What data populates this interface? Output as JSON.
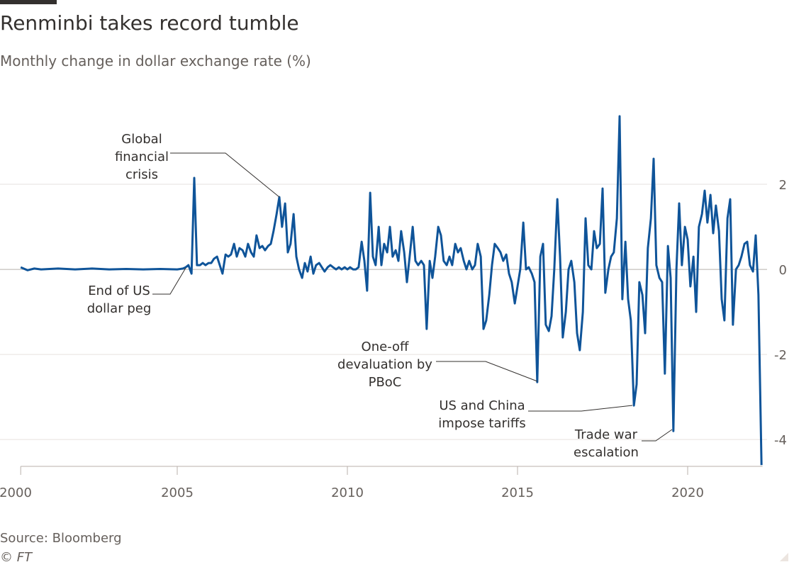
{
  "chart_data": {
    "type": "line",
    "title": "Renminbi takes record tumble",
    "subtitle": "Monthly change in dollar exchange rate (%)",
    "source": "Source: Bloomberg",
    "credit": "© FT",
    "xlim": [
      2000,
      2022.2
    ],
    "xticks": [
      2000,
      2005,
      2010,
      2015,
      2020
    ],
    "ylim": [
      -4.63,
      3.7
    ],
    "yticks": [
      -4,
      -2,
      0,
      2
    ],
    "grid": true,
    "x": [
      2000.4,
      2000.6,
      2000.8,
      2001,
      2001.5,
      2002,
      2002.5,
      2003,
      2003.5,
      2004,
      2004.5,
      2005,
      2005.17,
      2005.25,
      2005.33,
      2005.42,
      2005.5,
      2005.58,
      2005.67,
      2005.75,
      2005.83,
      2005.92,
      2006,
      2006.08,
      2006.17,
      2006.25,
      2006.33,
      2006.42,
      2006.5,
      2006.58,
      2006.67,
      2006.75,
      2006.83,
      2006.92,
      2007,
      2007.08,
      2007.17,
      2007.25,
      2007.33,
      2007.42,
      2007.5,
      2007.58,
      2007.67,
      2007.75,
      2007.83,
      2007.92,
      2008,
      2008.08,
      2008.17,
      2008.25,
      2008.33,
      2008.42,
      2008.5,
      2008.58,
      2008.67,
      2008.75,
      2008.83,
      2008.92,
      2009,
      2009.08,
      2009.17,
      2009.25,
      2009.33,
      2009.42,
      2009.5,
      2009.58,
      2009.67,
      2009.75,
      2009.83,
      2009.92,
      2010,
      2010.08,
      2010.17,
      2010.25,
      2010.33,
      2010.42,
      2010.5,
      2010.58,
      2010.67,
      2010.75,
      2010.83,
      2010.92,
      2011,
      2011.08,
      2011.17,
      2011.25,
      2011.33,
      2011.42,
      2011.5,
      2011.58,
      2011.67,
      2011.75,
      2011.83,
      2011.92,
      2012,
      2012.08,
      2012.17,
      2012.25,
      2012.33,
      2012.42,
      2012.5,
      2012.58,
      2012.67,
      2012.75,
      2012.83,
      2012.92,
      2013,
      2013.08,
      2013.17,
      2013.25,
      2013.33,
      2013.42,
      2013.5,
      2013.58,
      2013.67,
      2013.75,
      2013.83,
      2013.92,
      2014,
      2014.08,
      2014.17,
      2014.25,
      2014.33,
      2014.42,
      2014.5,
      2014.58,
      2014.67,
      2014.75,
      2014.83,
      2014.92,
      2015,
      2015.08,
      2015.17,
      2015.25,
      2015.33,
      2015.42,
      2015.5,
      2015.58,
      2015.67,
      2015.75,
      2015.83,
      2015.92,
      2016,
      2016.08,
      2016.17,
      2016.25,
      2016.33,
      2016.42,
      2016.5,
      2016.58,
      2016.67,
      2016.75,
      2016.83,
      2016.92,
      2017,
      2017.08,
      2017.17,
      2017.25,
      2017.33,
      2017.42,
      2017.5,
      2017.58,
      2017.67,
      2017.75,
      2017.83,
      2017.92,
      2018,
      2018.08,
      2018.17,
      2018.25,
      2018.33,
      2018.42,
      2018.5,
      2018.58,
      2018.67,
      2018.75,
      2018.83,
      2018.92,
      2019,
      2019.08,
      2019.17,
      2019.25,
      2019.33,
      2019.42,
      2019.5,
      2019.58,
      2019.67,
      2019.75,
      2019.83,
      2019.92,
      2020,
      2020.08,
      2020.17,
      2020.25,
      2020.33,
      2020.42,
      2020.5,
      2020.58,
      2020.67,
      2020.75,
      2020.83,
      2020.92,
      2021,
      2021.08,
      2021.17,
      2021.25,
      2021.33,
      2021.42,
      2021.5,
      2021.58,
      2021.67,
      2021.75,
      2021.83,
      2021.92,
      2022,
      2022.08,
      2022.17
    ],
    "series": [
      {
        "name": "Renminbi",
        "color": "#0f5499",
        "values": [
          0.05,
          -0.02,
          0.02,
          0,
          0.02,
          0,
          0.02,
          0,
          0.01,
          0,
          0.01,
          0,
          0.02,
          0.05,
          0.1,
          -0.1,
          2.15,
          0.1,
          0.1,
          0.15,
          0.1,
          0.15,
          0.15,
          0.25,
          0.3,
          0.1,
          -0.1,
          0.35,
          0.3,
          0.35,
          0.6,
          0.3,
          0.5,
          0.45,
          0.3,
          0.6,
          0.4,
          0.3,
          0.8,
          0.5,
          0.55,
          0.45,
          0.55,
          0.6,
          0.9,
          1.3,
          1.7,
          1.0,
          1.55,
          0.4,
          0.6,
          1.3,
          0.3,
          0.0,
          -0.2,
          0.15,
          -0.05,
          0.3,
          -0.1,
          0.1,
          0.15,
          0.05,
          -0.05,
          0.05,
          0.1,
          0.05,
          0.0,
          0.05,
          0.0,
          0.05,
          0,
          0.05,
          0,
          0,
          0.05,
          0.65,
          0.2,
          -0.5,
          1.8,
          0.3,
          0.1,
          1.0,
          0.1,
          0.6,
          0.4,
          1.0,
          0.3,
          0.45,
          0.2,
          0.9,
          0.4,
          -0.3,
          0.3,
          1.0,
          0.2,
          0.1,
          0.2,
          0.1,
          -1.4,
          0.2,
          -0.2,
          0.3,
          1.0,
          0.8,
          0.2,
          0.1,
          0.3,
          0.1,
          0.6,
          0.4,
          0.5,
          0.2,
          0.0,
          0.2,
          0.0,
          0.1,
          0.6,
          0.3,
          -1.4,
          -1.2,
          -0.6,
          0.1,
          0.6,
          0.5,
          0.4,
          0.2,
          0.35,
          -0.1,
          -0.3,
          -0.8,
          -0.4,
          0.0,
          1.1,
          0.0,
          0.05,
          -0.1,
          -0.3,
          -2.65,
          0.3,
          0.6,
          -1.3,
          -1.45,
          -1.1,
          0.0,
          1.65,
          0.3,
          -1.6,
          -1.0,
          0.0,
          0.2,
          -0.3,
          -1.5,
          -1.9,
          -1.0,
          1.2,
          0.1,
          0.0,
          0.9,
          0.5,
          0.6,
          1.9,
          -0.55,
          0.0,
          0.3,
          0.4,
          1.2,
          3.6,
          -0.7,
          0.65,
          -0.7,
          -1.2,
          -3.2,
          -2.7,
          -0.3,
          -0.6,
          -1.5,
          0.5,
          1.2,
          2.6,
          0.1,
          -0.2,
          -0.3,
          -2.45,
          0.55,
          -0.2,
          -3.8,
          0.0,
          1.55,
          0.1,
          1.0,
          0.7,
          -0.4,
          0.3,
          -1.0,
          1.0,
          1.3,
          1.85,
          1.1,
          1.75,
          0.85,
          1.5,
          0.9,
          -0.7,
          -1.2,
          1.2,
          1.65,
          -1.3,
          0.0,
          0.1,
          0.3,
          0.6,
          0.65,
          0.1,
          -0.05,
          0.8,
          -0.6,
          -4.6
        ]
      }
    ],
    "annotations": [
      {
        "lines": [
          "Global",
          "financial",
          "crisis"
        ]
      },
      {
        "lines": [
          "End of US",
          "dollar peg"
        ]
      },
      {
        "lines": [
          "One-off",
          "devaluation by",
          "PBoC"
        ]
      },
      {
        "lines": [
          "US and China",
          "impose tariffs"
        ]
      },
      {
        "lines": [
          "Trade war",
          "escalation"
        ]
      }
    ]
  }
}
